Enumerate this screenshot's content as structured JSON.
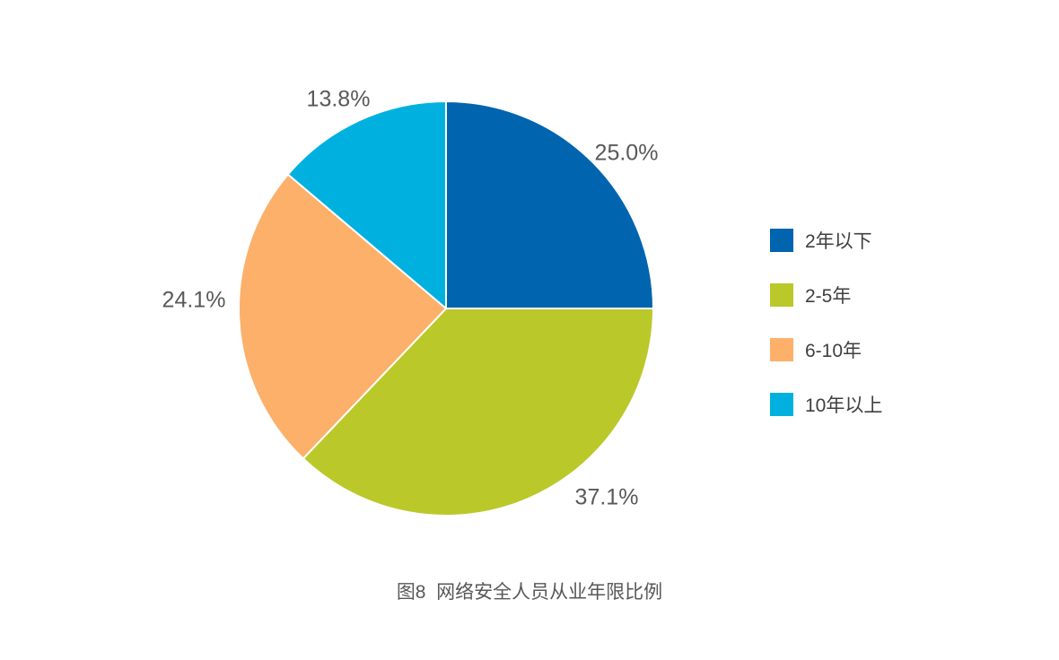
{
  "figure": {
    "caption": "图8  网络安全人员从业年限比例"
  },
  "chart_data": {
    "type": "pie",
    "title": "图8  网络安全人员从业年限比例",
    "start_angle_deg": 0,
    "direction": "clockwise",
    "legend_position": "right",
    "labels_outside": true,
    "background": "#FFFFFF",
    "label_color": "#58595B",
    "legend_text_color": "#3F3F3F",
    "caption_color": "#595757",
    "slices": [
      {
        "label": "2年以下",
        "value": 25.0,
        "display": "25.0%",
        "color": "#0064AE"
      },
      {
        "label": "2-5年",
        "value": 37.1,
        "display": "37.1%",
        "color": "#BBC82A"
      },
      {
        "label": "6-10年",
        "value": 24.1,
        "display": "24.1%",
        "color": "#FCB06A"
      },
      {
        "label": "10年以上",
        "value": 13.8,
        "display": "13.8%",
        "color": "#00B1E0"
      }
    ]
  }
}
